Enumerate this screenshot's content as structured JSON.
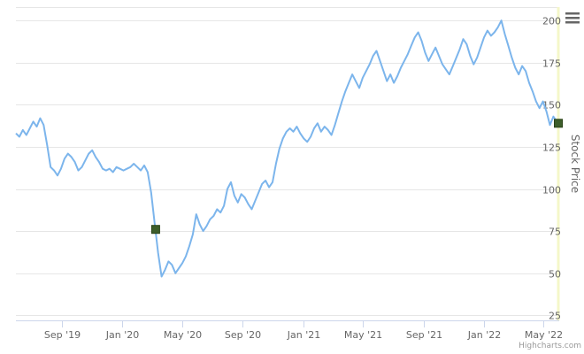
{
  "chart_data": {
    "type": "line",
    "ylabel": "Stock Price",
    "x_ticks": [
      "Sep '19",
      "Jan '20",
      "May '20",
      "Sep '20",
      "Jan '21",
      "May '21",
      "Sep '21",
      "Jan '22",
      "May '22"
    ],
    "y_ticks": [
      25,
      50,
      75,
      100,
      125,
      150,
      175,
      200
    ],
    "ylim": [
      22,
      208
    ],
    "x_start": "2019-06-01",
    "x_end": "2022-05-31",
    "grid": true,
    "series": [
      {
        "color": "#7cb5ec",
        "points": [
          [
            "2019-06-01",
            133
          ],
          [
            "2019-06-08",
            131
          ],
          [
            "2019-06-15",
            135
          ],
          [
            "2019-06-22",
            132
          ],
          [
            "2019-06-29",
            136
          ],
          [
            "2019-07-06",
            140
          ],
          [
            "2019-07-13",
            137
          ],
          [
            "2019-07-20",
            142
          ],
          [
            "2019-07-27",
            138
          ],
          [
            "2019-08-03",
            126
          ],
          [
            "2019-08-10",
            113
          ],
          [
            "2019-08-17",
            111
          ],
          [
            "2019-08-24",
            108
          ],
          [
            "2019-08-31",
            112
          ],
          [
            "2019-09-07",
            118
          ],
          [
            "2019-09-14",
            121
          ],
          [
            "2019-09-21",
            119
          ],
          [
            "2019-09-28",
            116
          ],
          [
            "2019-10-05",
            111
          ],
          [
            "2019-10-12",
            113
          ],
          [
            "2019-10-19",
            117
          ],
          [
            "2019-10-26",
            121
          ],
          [
            "2019-11-02",
            123
          ],
          [
            "2019-11-09",
            119
          ],
          [
            "2019-11-16",
            116
          ],
          [
            "2019-11-23",
            112
          ],
          [
            "2019-11-30",
            111
          ],
          [
            "2019-12-07",
            112
          ],
          [
            "2019-12-14",
            110
          ],
          [
            "2019-12-21",
            113
          ],
          [
            "2019-12-28",
            112
          ],
          [
            "2020-01-04",
            111
          ],
          [
            "2020-01-11",
            112
          ],
          [
            "2020-01-18",
            113
          ],
          [
            "2020-01-25",
            115
          ],
          [
            "2020-02-01",
            113
          ],
          [
            "2020-02-08",
            111
          ],
          [
            "2020-02-15",
            114
          ],
          [
            "2020-02-22",
            110
          ],
          [
            "2020-02-29",
            98
          ],
          [
            "2020-03-07",
            80
          ],
          [
            "2020-03-14",
            62
          ],
          [
            "2020-03-21",
            48
          ],
          [
            "2020-03-28",
            52
          ],
          [
            "2020-04-04",
            57
          ],
          [
            "2020-04-11",
            55
          ],
          [
            "2020-04-18",
            50
          ],
          [
            "2020-04-25",
            53
          ],
          [
            "2020-05-02",
            56
          ],
          [
            "2020-05-09",
            60
          ],
          [
            "2020-05-16",
            66
          ],
          [
            "2020-05-23",
            73
          ],
          [
            "2020-05-30",
            85
          ],
          [
            "2020-06-06",
            79
          ],
          [
            "2020-06-13",
            75
          ],
          [
            "2020-06-20",
            78
          ],
          [
            "2020-06-27",
            82
          ],
          [
            "2020-07-04",
            84
          ],
          [
            "2020-07-11",
            88
          ],
          [
            "2020-07-18",
            86
          ],
          [
            "2020-07-25",
            90
          ],
          [
            "2020-08-01",
            100
          ],
          [
            "2020-08-08",
            104
          ],
          [
            "2020-08-15",
            96
          ],
          [
            "2020-08-22",
            92
          ],
          [
            "2020-08-29",
            97
          ],
          [
            "2020-09-05",
            95
          ],
          [
            "2020-09-12",
            91
          ],
          [
            "2020-09-19",
            88
          ],
          [
            "2020-09-26",
            93
          ],
          [
            "2020-10-03",
            98
          ],
          [
            "2020-10-10",
            103
          ],
          [
            "2020-10-17",
            105
          ],
          [
            "2020-10-24",
            101
          ],
          [
            "2020-10-31",
            104
          ],
          [
            "2020-11-07",
            115
          ],
          [
            "2020-11-14",
            124
          ],
          [
            "2020-11-21",
            130
          ],
          [
            "2020-11-28",
            134
          ],
          [
            "2020-12-05",
            136
          ],
          [
            "2020-12-12",
            134
          ],
          [
            "2020-12-19",
            137
          ],
          [
            "2020-12-26",
            133
          ],
          [
            "2021-01-02",
            130
          ],
          [
            "2021-01-09",
            128
          ],
          [
            "2021-01-16",
            131
          ],
          [
            "2021-01-23",
            136
          ],
          [
            "2021-01-30",
            139
          ],
          [
            "2021-02-06",
            134
          ],
          [
            "2021-02-13",
            137
          ],
          [
            "2021-02-20",
            135
          ],
          [
            "2021-02-27",
            132
          ],
          [
            "2021-03-06",
            138
          ],
          [
            "2021-03-13",
            145
          ],
          [
            "2021-03-20",
            152
          ],
          [
            "2021-03-27",
            158
          ],
          [
            "2021-04-03",
            163
          ],
          [
            "2021-04-10",
            168
          ],
          [
            "2021-04-17",
            164
          ],
          [
            "2021-04-24",
            160
          ],
          [
            "2021-05-01",
            166
          ],
          [
            "2021-05-08",
            170
          ],
          [
            "2021-05-15",
            174
          ],
          [
            "2021-05-22",
            179
          ],
          [
            "2021-05-29",
            182
          ],
          [
            "2021-06-05",
            176
          ],
          [
            "2021-06-12",
            170
          ],
          [
            "2021-06-19",
            164
          ],
          [
            "2021-06-26",
            168
          ],
          [
            "2021-07-03",
            163
          ],
          [
            "2021-07-10",
            167
          ],
          [
            "2021-07-17",
            172
          ],
          [
            "2021-07-24",
            176
          ],
          [
            "2021-07-31",
            180
          ],
          [
            "2021-08-07",
            185
          ],
          [
            "2021-08-14",
            190
          ],
          [
            "2021-08-21",
            193
          ],
          [
            "2021-08-28",
            188
          ],
          [
            "2021-09-04",
            181
          ],
          [
            "2021-09-11",
            176
          ],
          [
            "2021-09-18",
            180
          ],
          [
            "2021-09-25",
            184
          ],
          [
            "2021-10-02",
            179
          ],
          [
            "2021-10-09",
            174
          ],
          [
            "2021-10-16",
            171
          ],
          [
            "2021-10-23",
            168
          ],
          [
            "2021-10-30",
            173
          ],
          [
            "2021-11-06",
            178
          ],
          [
            "2021-11-13",
            183
          ],
          [
            "2021-11-20",
            189
          ],
          [
            "2021-11-27",
            186
          ],
          [
            "2021-12-04",
            179
          ],
          [
            "2021-12-11",
            174
          ],
          [
            "2021-12-18",
            178
          ],
          [
            "2021-12-25",
            184
          ],
          [
            "2022-01-01",
            190
          ],
          [
            "2022-01-08",
            194
          ],
          [
            "2022-01-15",
            191
          ],
          [
            "2022-01-22",
            193
          ],
          [
            "2022-01-29",
            196
          ],
          [
            "2022-02-05",
            200
          ],
          [
            "2022-02-12",
            192
          ],
          [
            "2022-02-19",
            185
          ],
          [
            "2022-02-26",
            178
          ],
          [
            "2022-03-05",
            172
          ],
          [
            "2022-03-12",
            168
          ],
          [
            "2022-03-19",
            173
          ],
          [
            "2022-03-26",
            170
          ],
          [
            "2022-04-02",
            163
          ],
          [
            "2022-04-09",
            158
          ],
          [
            "2022-04-16",
            152
          ],
          [
            "2022-04-23",
            148
          ],
          [
            "2022-04-30",
            152
          ],
          [
            "2022-05-07",
            146
          ],
          [
            "2022-05-14",
            138
          ],
          [
            "2022-05-21",
            143
          ],
          [
            "2022-05-28",
            140
          ]
        ]
      }
    ],
    "markers": [
      {
        "date": "2020-03-09",
        "value": 76,
        "color": "#3d5e2a"
      },
      {
        "date": "2022-05-31",
        "value": 139,
        "color": "#3d5e2a"
      }
    ]
  },
  "credit": "Highcharts.com",
  "menu_icon": "hamburger-menu-icon"
}
